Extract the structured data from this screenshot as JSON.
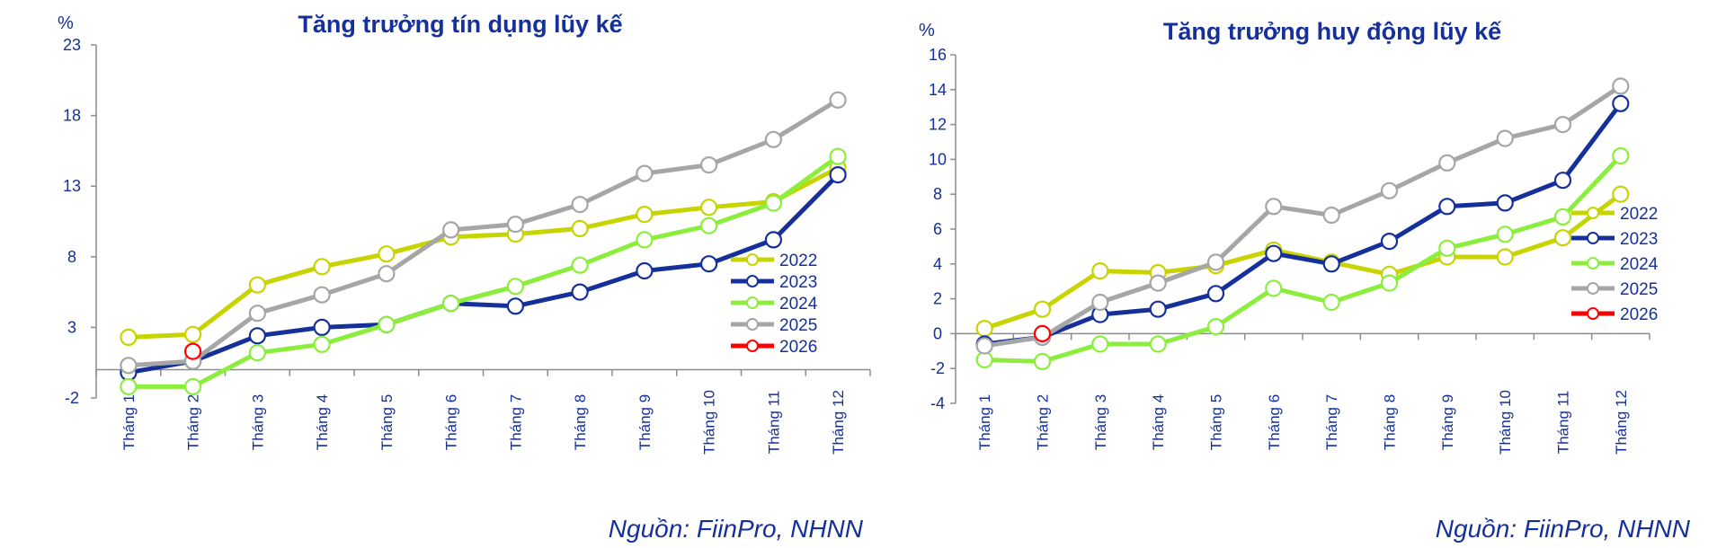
{
  "chart_data": [
    {
      "type": "line",
      "title": "Tăng trưởng tín dụng lũy kế",
      "unit": "%",
      "categories": [
        "Tháng 1",
        "Tháng 2",
        "Tháng 3",
        "Tháng 4",
        "Tháng 5",
        "Tháng 6",
        "Tháng 7",
        "Tháng 8",
        "Tháng 9",
        "Tháng 10",
        "Tháng 11",
        "Tháng 12"
      ],
      "ylim": [
        -2,
        23
      ],
      "yticks": [
        -2,
        3,
        8,
        13,
        18,
        23
      ],
      "source": "Nguồn:  FiinPro, NHNN",
      "series": [
        {
          "name": "2022",
          "color": "#c8d400",
          "values": [
            2.3,
            2.5,
            6.0,
            7.3,
            8.2,
            9.4,
            9.6,
            10.0,
            11.0,
            11.5,
            11.9,
            14.3
          ]
        },
        {
          "name": "2023",
          "color": "#15309a",
          "values": [
            -0.2,
            0.6,
            2.4,
            3.0,
            3.2,
            4.7,
            4.5,
            5.5,
            7.0,
            7.5,
            9.2,
            13.8
          ]
        },
        {
          "name": "2024",
          "color": "#8cee3c",
          "values": [
            -1.2,
            -1.2,
            1.2,
            1.8,
            3.2,
            4.7,
            5.9,
            7.4,
            9.2,
            10.2,
            11.8,
            15.1
          ]
        },
        {
          "name": "2025",
          "color": "#a6a6a6",
          "values": [
            0.3,
            0.6,
            4.0,
            5.3,
            6.8,
            9.9,
            10.3,
            11.7,
            13.9,
            14.5,
            16.3,
            19.1
          ]
        },
        {
          "name": "2026",
          "color": "#ff0000",
          "values": [
            null,
            1.3,
            null,
            null,
            null,
            null,
            null,
            null,
            null,
            null,
            null,
            null
          ]
        }
      ]
    },
    {
      "type": "line",
      "title": "Tăng trưởng huy động lũy kế",
      "unit": "%",
      "categories": [
        "Tháng 1",
        "Tháng 2",
        "Tháng 3",
        "Tháng 4",
        "Tháng 5",
        "Tháng 6",
        "Tháng 7",
        "Tháng 8",
        "Tháng 9",
        "Tháng 10",
        "Tháng 11",
        "Tháng 12"
      ],
      "ylim": [
        -4,
        16
      ],
      "yticks": [
        -4,
        -2,
        0,
        2,
        4,
        6,
        8,
        10,
        12,
        14,
        16
      ],
      "source": "Nguồn:  FiinPro, NHNN",
      "series": [
        {
          "name": "2022",
          "color": "#c8d400",
          "values": [
            0.3,
            1.4,
            3.6,
            3.5,
            3.9,
            4.8,
            4.1,
            3.4,
            4.4,
            4.4,
            5.5,
            8.0
          ]
        },
        {
          "name": "2023",
          "color": "#15309a",
          "values": [
            -0.6,
            -0.2,
            1.1,
            1.4,
            2.3,
            4.6,
            4.0,
            5.3,
            7.3,
            7.5,
            8.8,
            13.2
          ]
        },
        {
          "name": "2024",
          "color": "#8cee3c",
          "values": [
            -1.5,
            -1.6,
            -0.6,
            -0.6,
            0.4,
            2.6,
            1.8,
            2.9,
            4.9,
            5.7,
            6.7,
            10.2
          ]
        },
        {
          "name": "2025",
          "color": "#a6a6a6",
          "values": [
            -0.7,
            -0.2,
            1.8,
            2.9,
            4.1,
            7.3,
            6.8,
            8.2,
            9.8,
            11.2,
            12.0,
            14.2
          ]
        },
        {
          "name": "2026",
          "color": "#ff0000",
          "values": [
            null,
            0.0,
            null,
            null,
            null,
            null,
            null,
            null,
            null,
            null,
            null,
            null
          ]
        }
      ]
    }
  ]
}
